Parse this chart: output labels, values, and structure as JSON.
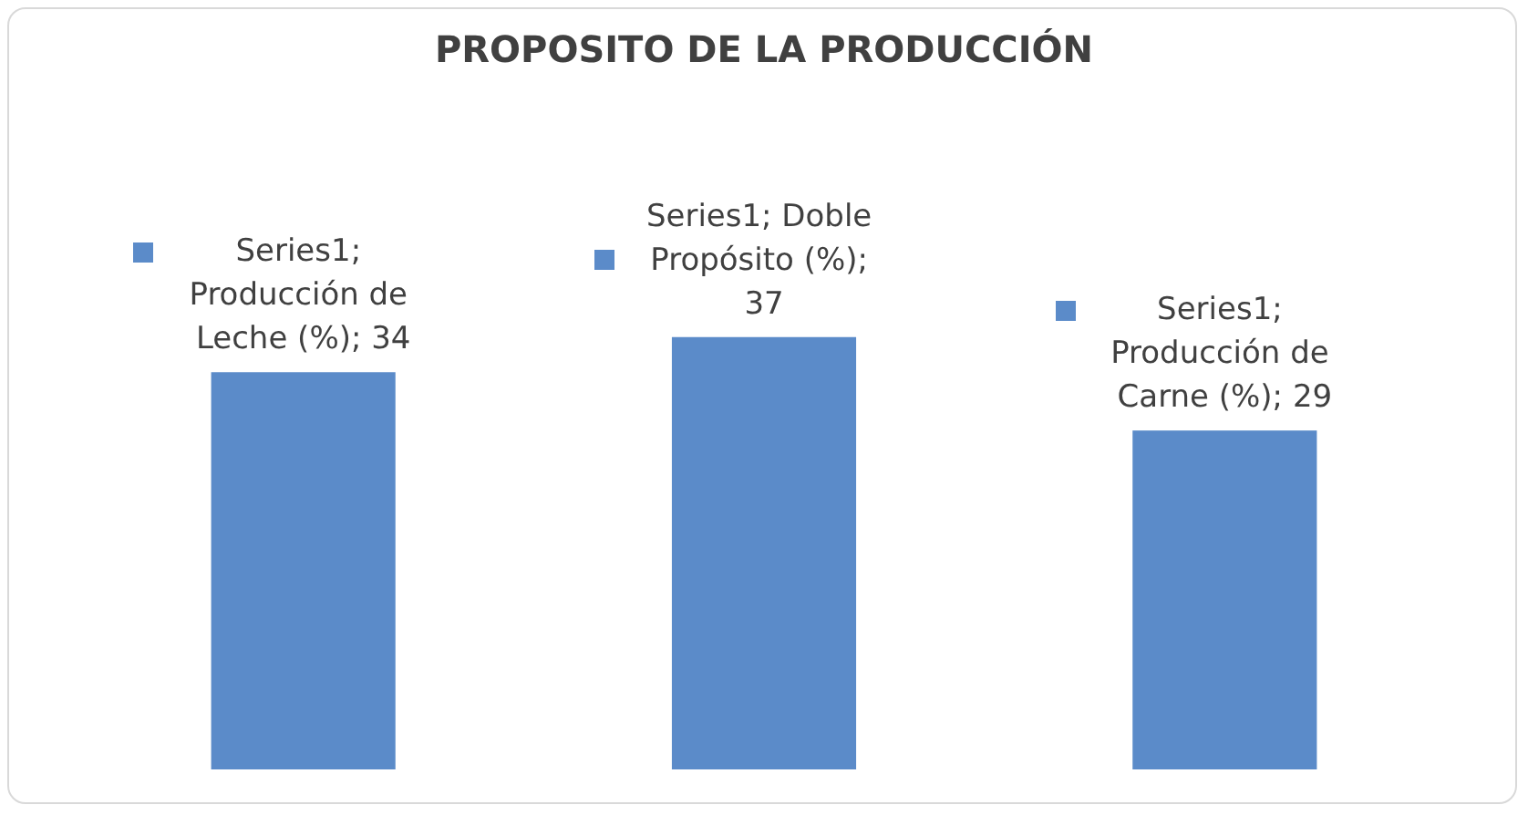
{
  "chart_data": {
    "type": "bar",
    "title": "PROPOSITO DE LA PRODUCCIÓN",
    "categories": [
      null,
      null,
      null
    ],
    "series": [
      {
        "color": "#5b8bc9",
        "values": [
          34,
          37,
          29
        ],
        "value_labels": [
          "Series1; Producción de Leche (%); 34",
          "Series1; Doble Propósito (%); 37",
          "Series1; Producción de Carne (%); 29"
        ]
      }
    ],
    "ylim": [
      0,
      44
    ],
    "tick_labels": false
  }
}
